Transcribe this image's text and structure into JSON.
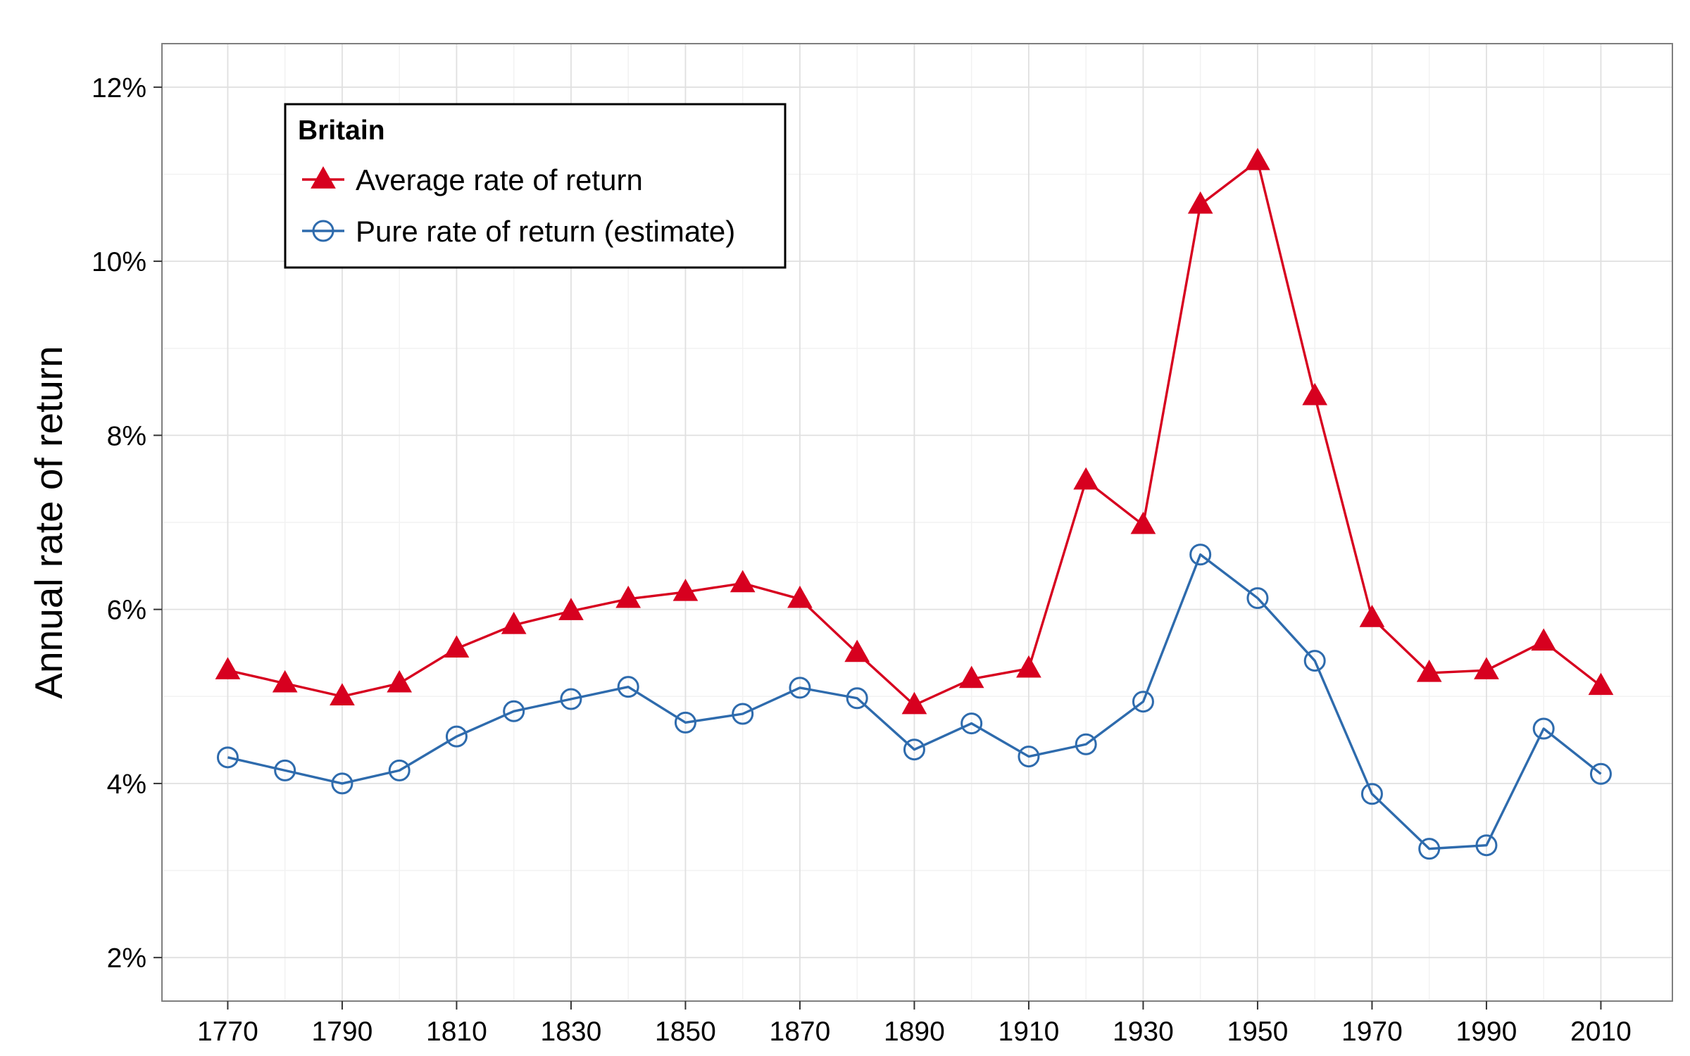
{
  "chart_data": {
    "type": "line",
    "title": "",
    "xlabel": "",
    "ylabel": "Annual rate of return",
    "x": [
      1770,
      1780,
      1790,
      1800,
      1810,
      1820,
      1830,
      1840,
      1850,
      1860,
      1870,
      1880,
      1890,
      1900,
      1910,
      1920,
      1930,
      1940,
      1950,
      1960,
      1970,
      1980,
      1990,
      2000,
      2010
    ],
    "xlim": [
      1758.5,
      2022.5
    ],
    "x_ticks": [
      1770,
      1790,
      1810,
      1830,
      1850,
      1870,
      1890,
      1910,
      1930,
      1950,
      1970,
      1990,
      2010
    ],
    "x_tick_labels": [
      "1770",
      "1790",
      "1810",
      "1830",
      "1850",
      "1870",
      "1890",
      "1910",
      "1930",
      "1950",
      "1970",
      "1990",
      "2010"
    ],
    "ylim": [
      1.5,
      12.5
    ],
    "y_ticks": [
      2,
      4,
      6,
      8,
      10,
      12
    ],
    "y_tick_labels": [
      "2%",
      "4%",
      "6%",
      "8%",
      "10%",
      "12%"
    ],
    "grid": true,
    "legend": {
      "title": "Britain",
      "position": "top-left"
    },
    "series": [
      {
        "name": "Average rate of return",
        "color": "#d7001f",
        "marker": "filled-triangle",
        "values": [
          5.3,
          5.15,
          5.0,
          5.15,
          5.55,
          5.82,
          5.98,
          6.12,
          6.2,
          6.3,
          6.12,
          5.5,
          4.9,
          5.2,
          5.32,
          7.48,
          6.97,
          10.65,
          11.15,
          8.45,
          5.9,
          5.27,
          5.3,
          5.63,
          5.12
        ]
      },
      {
        "name": "Pure rate of return (estimate)",
        "color": "#2e6bad",
        "marker": "open-circle",
        "values": [
          4.3,
          4.15,
          4.0,
          4.15,
          4.54,
          4.83,
          4.97,
          5.11,
          4.7,
          4.8,
          5.1,
          4.98,
          4.39,
          4.69,
          4.31,
          4.45,
          4.94,
          6.63,
          6.13,
          5.41,
          3.88,
          3.25,
          3.29,
          4.63,
          4.11
        ]
      }
    ]
  }
}
